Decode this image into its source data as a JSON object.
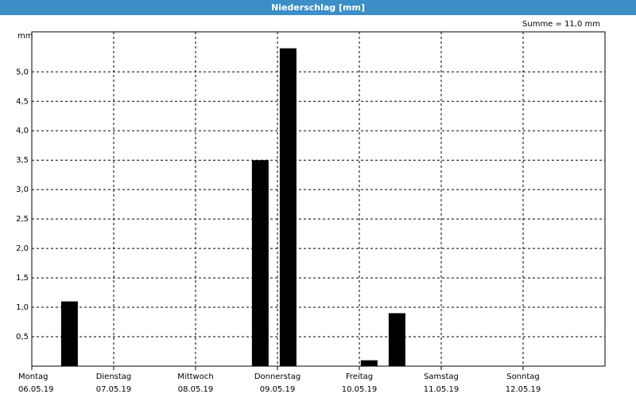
{
  "chart_data": {
    "type": "bar",
    "title": "Niederschlag [mm]",
    "annotation": "Summe = 11,0 mm",
    "ylabel": "mm",
    "x": [
      0.46,
      2.79,
      3.13,
      4.12,
      4.46
    ],
    "values": [
      1.1,
      3.5,
      5.4,
      0.1,
      0.9
    ],
    "color": "#000000",
    "xlim": [
      0,
      7
    ],
    "xticks": [
      {
        "value": 0,
        "label": "Montag",
        "date": "06.05.19"
      },
      {
        "value": 1,
        "label": "Dienstag",
        "date": "07.05.19"
      },
      {
        "value": 2,
        "label": "Mittwoch",
        "date": "08.05.19"
      },
      {
        "value": 3,
        "label": "Donnerstag",
        "date": "09.05.19"
      },
      {
        "value": 4,
        "label": "Freitag",
        "date": "10.05.19"
      },
      {
        "value": 5,
        "label": "Samstag",
        "date": "11.05.19"
      },
      {
        "value": 6,
        "label": "Sonntag",
        "date": "12.05.19"
      }
    ],
    "ylim": [
      0,
      5.68
    ],
    "yticks": [
      {
        "value": 0.5,
        "label": "0,5"
      },
      {
        "value": 1.0,
        "label": "1,0"
      },
      {
        "value": 1.5,
        "label": "1,5"
      },
      {
        "value": 2.0,
        "label": "2,0"
      },
      {
        "value": 2.5,
        "label": "2,5"
      },
      {
        "value": 3.0,
        "label": "3,0"
      },
      {
        "value": 3.5,
        "label": "3,5"
      },
      {
        "value": 4.0,
        "label": "4,0"
      },
      {
        "value": 4.5,
        "label": "4,5"
      },
      {
        "value": 5.0,
        "label": "5,0"
      }
    ],
    "grid": true
  }
}
